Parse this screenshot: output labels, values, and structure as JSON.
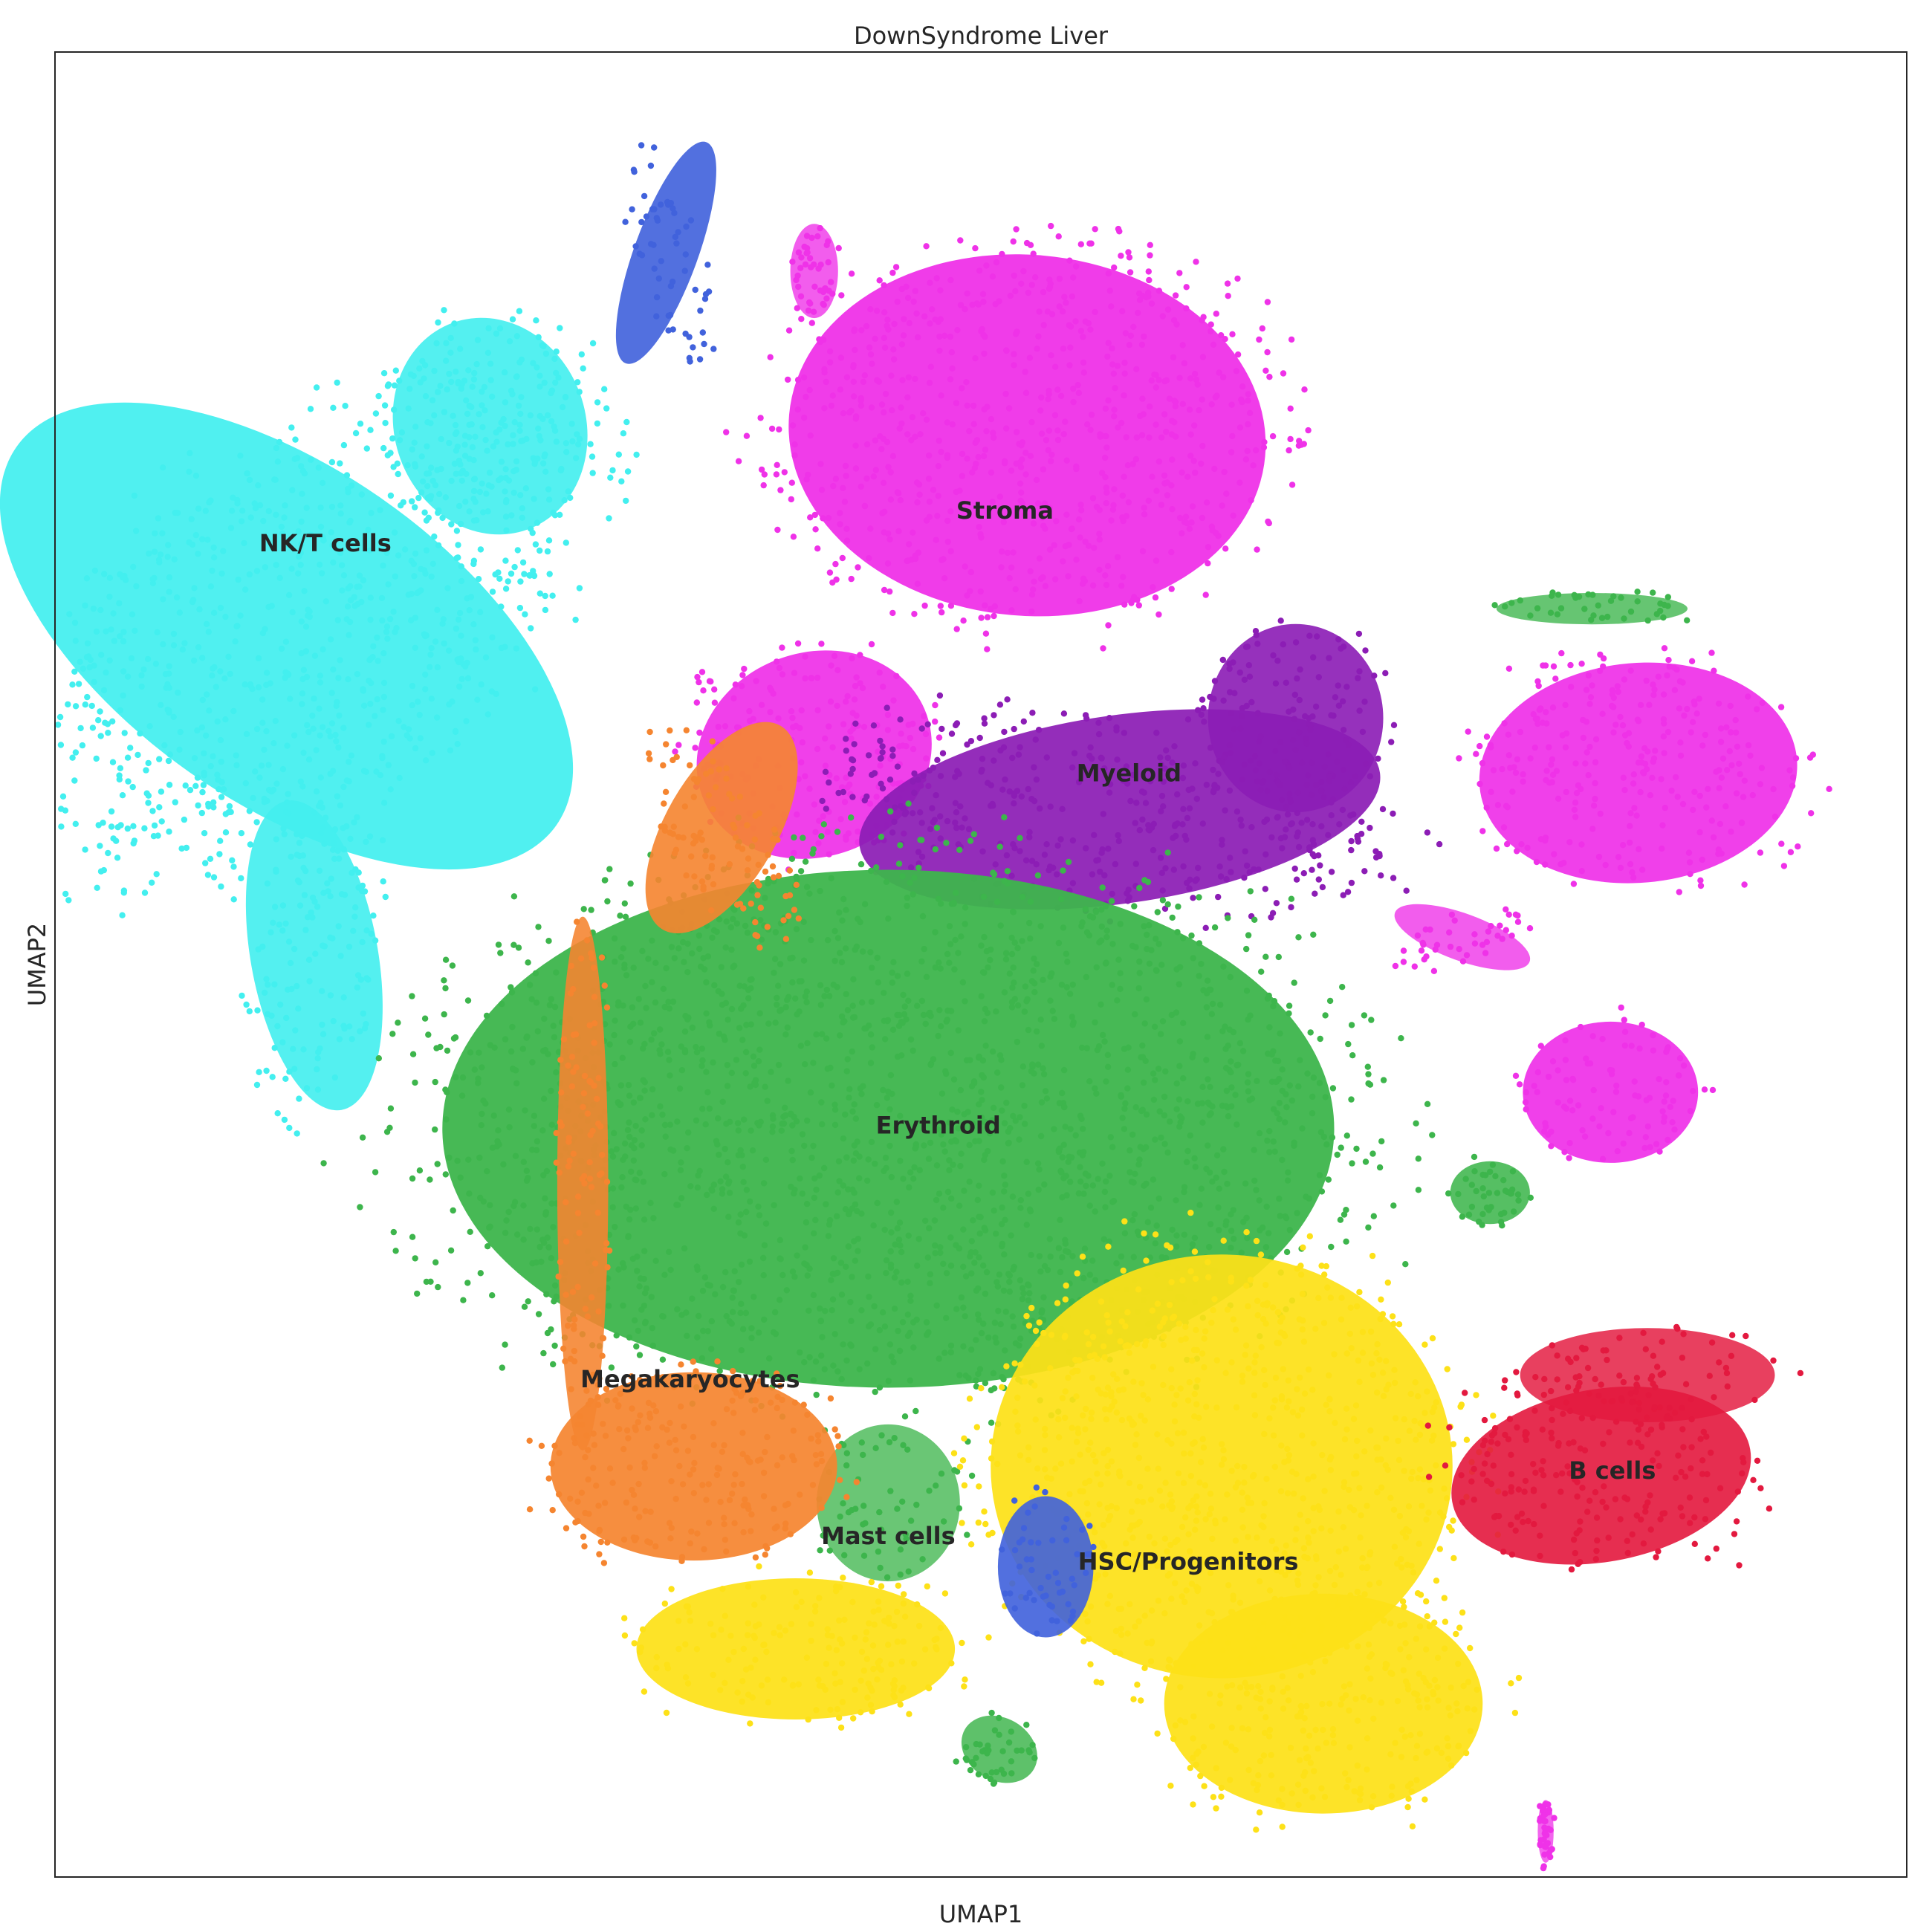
{
  "chart_data": {
    "type": "scatter",
    "title": "DownSyndrome Liver",
    "xlabel": "UMAP1",
    "ylabel": "UMAP2",
    "xlim": [
      0,
      100
    ],
    "ylim": [
      0,
      100
    ],
    "grid": false,
    "legend": "on data",
    "ticks": "none",
    "clusters": [
      {
        "name": "NK/T cells",
        "color": "#43EFEF",
        "label_at": [
          14.6,
          73.0
        ],
        "blobs": [
          [
            12.5,
            68.0,
            10.5,
            21.0,
            55,
            0.95
          ],
          [
            14.0,
            50.5,
            4.0,
            10.0,
            10,
            0.9
          ],
          [
            23.5,
            79.5,
            6.0,
            7.0,
            20,
            0.9
          ]
        ]
      },
      {
        "name": "Stroma",
        "color": "#EF32E8",
        "label_at": [
          51.3,
          74.8
        ],
        "blobs": [
          [
            52.5,
            79.0,
            15.0,
            11.5,
            -5,
            1.0
          ],
          [
            41.0,
            61.5,
            7.5,
            6.5,
            20,
            0.95
          ],
          [
            85.5,
            60.5,
            10.0,
            7.0,
            5,
            0.95
          ],
          [
            84.0,
            43.0,
            5.5,
            4.5,
            0,
            0.95
          ],
          [
            41.0,
            88.0,
            1.5,
            3.0,
            0,
            0.6
          ],
          [
            76.0,
            51.5,
            4.5,
            1.5,
            -20,
            0.6
          ],
          [
            80.5,
            2.5,
            0.5,
            2.0,
            0,
            0.5
          ]
        ]
      },
      {
        "name": "Myeloid",
        "color": "#8C1DB5",
        "label_at": [
          58.0,
          60.4
        ],
        "blobs": [
          [
            57.5,
            58.5,
            16.5,
            6.0,
            8,
            0.95
          ],
          [
            67.0,
            63.5,
            5.5,
            6.0,
            0,
            0.9
          ]
        ]
      },
      {
        "name": "Erythroid",
        "color": "#3DB54C",
        "label_at": [
          47.7,
          41.1
        ],
        "blobs": [
          [
            45.0,
            41.0,
            28.0,
            16.5,
            0,
            1.0
          ],
          [
            77.5,
            37.5,
            2.5,
            2.0,
            0,
            0.8
          ],
          [
            51.0,
            7.0,
            2.5,
            2.0,
            -30,
            0.7
          ],
          [
            83.0,
            69.5,
            6.0,
            1.0,
            0,
            0.6
          ],
          [
            45.0,
            20.5,
            4.5,
            5.0,
            0,
            0.55
          ]
        ]
      },
      {
        "name": "Megakaryocytes",
        "color": "#F58530",
        "label_at": [
          34.3,
          27.2
        ],
        "blobs": [
          [
            34.5,
            22.5,
            9.0,
            6.0,
            0,
            0.95
          ],
          [
            36.0,
            57.5,
            3.5,
            7.5,
            -30,
            0.9
          ],
          [
            28.5,
            38.0,
            1.6,
            17.0,
            0,
            0.85
          ]
        ]
      },
      {
        "name": "HSC/Progenitors",
        "color": "#FDE118",
        "label_at": [
          61.2,
          17.2
        ],
        "blobs": [
          [
            63.0,
            22.5,
            14.5,
            13.5,
            0,
            0.95
          ],
          [
            68.5,
            9.5,
            10.0,
            7.0,
            0,
            0.95
          ],
          [
            40.0,
            12.5,
            10.0,
            4.5,
            0,
            0.95
          ]
        ]
      },
      {
        "name": "Mast cells",
        "color": "#4162DC",
        "label_at": [
          45.0,
          18.6
        ],
        "blobs": [
          [
            53.5,
            17.0,
            3.0,
            4.5,
            0,
            0.9
          ],
          [
            33.0,
            89.0,
            2.0,
            7.5,
            -20,
            0.9
          ]
        ]
      },
      {
        "name": "B cells",
        "color": "#E3193F",
        "label_at": [
          84.1,
          22.2
        ],
        "blobs": [
          [
            83.5,
            22.0,
            9.5,
            5.5,
            10,
            0.9
          ],
          [
            86.0,
            27.5,
            8.0,
            3.0,
            0,
            0.7
          ]
        ]
      }
    ]
  }
}
